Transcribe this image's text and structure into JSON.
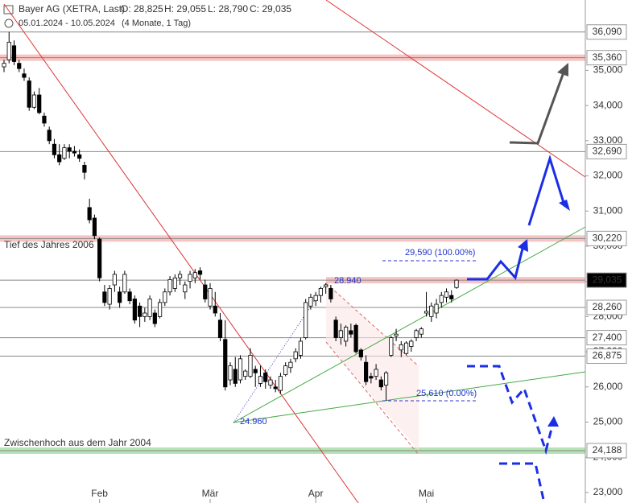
{
  "chart_data": {
    "type": "candlestick",
    "title": "Bayer AG (XETRA, Last)",
    "ohlc_header": [
      "O: 28,825",
      "H: 29,055",
      "L: 28,790",
      "C: 29,035"
    ],
    "subtitle": "05.01.2024 - 10.05.2024",
    "period": "(4 Monate, 1 Tag)",
    "up_color": "#ffffff",
    "down_color": "#000000",
    "ylim": [
      22700,
      37000
    ],
    "yticks": [
      {
        "value": 23000,
        "label": "23,000"
      },
      {
        "value": 24000,
        "label": "24,000"
      },
      {
        "value": 25000,
        "label": "25,000"
      },
      {
        "value": 26000,
        "label": "26,000"
      },
      {
        "value": 27000,
        "label": "27,000"
      },
      {
        "value": 28000,
        "label": "28,000"
      },
      {
        "value": 29000,
        "label": "29,000"
      },
      {
        "value": 30000,
        "label": "30,000"
      },
      {
        "value": 31000,
        "label": "31,000"
      },
      {
        "value": 32000,
        "label": "32,000"
      },
      {
        "value": 33000,
        "label": "33,000"
      },
      {
        "value": 34000,
        "label": "34,000"
      },
      {
        "value": 35000,
        "label": "35,000"
      }
    ],
    "month_ticks": [
      {
        "label": "Feb",
        "index": 19
      },
      {
        "label": "Mär",
        "index": 41
      },
      {
        "label": "Apr",
        "index": 62
      },
      {
        "label": "Mai",
        "index": 84
      }
    ],
    "levels": [
      {
        "value": 36090,
        "label": "36,090",
        "kind": "line"
      },
      {
        "value": 35360,
        "label": "35,360",
        "kind": "resistance"
      },
      {
        "value": 32690,
        "label": "32,690",
        "kind": "line"
      },
      {
        "value": 30220,
        "label": "30,220",
        "kind": "resistance"
      },
      {
        "value": 29035,
        "label": "29,035",
        "kind": "last"
      },
      {
        "value": 28260,
        "label": "28,260",
        "kind": "line"
      },
      {
        "value": 27400,
        "label": "27,400",
        "kind": "line"
      },
      {
        "value": 26875,
        "label": "26,875",
        "kind": "line"
      },
      {
        "value": 24188,
        "label": "24,188",
        "kind": "support"
      }
    ],
    "annotations": [
      "Tief des Jahres 2006",
      "Zwischenhoch aus dem Jahr 2004",
      "28.940",
      "24.960",
      "29,590 (100.00%)",
      "25,610 (0.00%)"
    ],
    "candles": [
      [
        35100,
        35300,
        34950,
        35200
      ],
      [
        35300,
        36090,
        35200,
        35800
      ],
      [
        35700,
        35850,
        35150,
        35250
      ],
      [
        35200,
        35300,
        34950,
        35050
      ],
      [
        34900,
        35050,
        34700,
        34800
      ],
      [
        34700,
        34800,
        33850,
        33950
      ],
      [
        33950,
        34400,
        33900,
        34300
      ],
      [
        34300,
        34500,
        33750,
        33800
      ],
      [
        33700,
        33800,
        33400,
        33500
      ],
      [
        33300,
        33400,
        32900,
        33000
      ],
      [
        32900,
        33050,
        32500,
        32600
      ],
      [
        32600,
        32900,
        32300,
        32400
      ],
      [
        32500,
        32900,
        32450,
        32800
      ],
      [
        32800,
        32900,
        32500,
        32700
      ],
      [
        32700,
        32850,
        32550,
        32650
      ],
      [
        32600,
        32750,
        32400,
        32500
      ],
      [
        32300,
        32400,
        31900,
        32100
      ],
      [
        31100,
        31350,
        30650,
        30750
      ],
      [
        30800,
        30900,
        30200,
        30300
      ],
      [
        30200,
        30250,
        29000,
        29100
      ],
      [
        28700,
        28900,
        28300,
        28400
      ],
      [
        28350,
        28900,
        28200,
        28800
      ],
      [
        28900,
        29300,
        28700,
        29200
      ],
      [
        28700,
        28850,
        28250,
        28400
      ],
      [
        28700,
        29300,
        28650,
        29200
      ],
      [
        28700,
        28800,
        28350,
        28450
      ],
      [
        28500,
        28600,
        27800,
        27900
      ],
      [
        28300,
        28400,
        27700,
        28000
      ],
      [
        28000,
        28250,
        27850,
        28100
      ],
      [
        28000,
        28600,
        27900,
        28500
      ],
      [
        28100,
        28200,
        27700,
        27800
      ],
      [
        28000,
        28500,
        27950,
        28400
      ],
      [
        28400,
        28800,
        28300,
        28700
      ],
      [
        28700,
        29150,
        28600,
        29050
      ],
      [
        28800,
        29200,
        28700,
        29100
      ],
      [
        29100,
        29300,
        28900,
        29200
      ],
      [
        28700,
        29000,
        28500,
        28900
      ],
      [
        29000,
        29300,
        28800,
        29200
      ],
      [
        29100,
        29350,
        28950,
        29250
      ],
      [
        29300,
        29400,
        29050,
        29200
      ],
      [
        28900,
        29050,
        28400,
        28500
      ],
      [
        28300,
        28950,
        28200,
        28800
      ],
      [
        28300,
        28700,
        28000,
        28100
      ],
      [
        27900,
        28100,
        27300,
        27400
      ],
      [
        27350,
        27900,
        25900,
        26000
      ],
      [
        26200,
        26700,
        26050,
        26600
      ],
      [
        26500,
        26850,
        26000,
        26100
      ],
      [
        26200,
        26900,
        26100,
        26800
      ],
      [
        26300,
        26500,
        26200,
        26450
      ],
      [
        26300,
        27100,
        26250,
        26900
      ],
      [
        26500,
        26600,
        26000,
        26400
      ],
      [
        26100,
        26600,
        26000,
        26300
      ],
      [
        26400,
        26500,
        25950,
        26150
      ],
      [
        26050,
        26300,
        25950,
        26200
      ],
      [
        26000,
        26200,
        25850,
        25950
      ],
      [
        25900,
        26400,
        25800,
        26300
      ],
      [
        26350,
        26700,
        26300,
        26600
      ],
      [
        26550,
        26800,
        26400,
        26700
      ],
      [
        26800,
        27100,
        26700,
        27000
      ],
      [
        26900,
        27400,
        26800,
        27300
      ],
      [
        27400,
        28500,
        27350,
        28400
      ],
      [
        28300,
        28650,
        28200,
        28550
      ],
      [
        28450,
        28700,
        28300,
        28600
      ],
      [
        28600,
        28850,
        28400,
        28800
      ],
      [
        28850,
        28950,
        28650,
        28900
      ],
      [
        28800,
        28900,
        28400,
        28500
      ],
      [
        27900,
        28000,
        27300,
        27400
      ],
      [
        27400,
        27800,
        27200,
        27600
      ],
      [
        27300,
        27750,
        27150,
        27700
      ],
      [
        27600,
        27800,
        27400,
        27500
      ],
      [
        27750,
        27800,
        26950,
        27000
      ],
      [
        27050,
        27100,
        26750,
        26850
      ],
      [
        26700,
        26900,
        26050,
        26150
      ],
      [
        26300,
        26400,
        26100,
        26250
      ],
      [
        26300,
        26650,
        26200,
        26500
      ],
      [
        26200,
        26300,
        25900,
        26000
      ],
      [
        26050,
        26450,
        25610,
        26400
      ],
      [
        26900,
        27450,
        26850,
        27400
      ],
      [
        27450,
        27650,
        27300,
        27500
      ],
      [
        27050,
        27300,
        26850,
        27200
      ],
      [
        26950,
        27300,
        26900,
        27250
      ],
      [
        27150,
        27350,
        27000,
        27300
      ],
      [
        27400,
        27650,
        27300,
        27600
      ],
      [
        27500,
        27700,
        27400,
        27650
      ],
      [
        28100,
        28700,
        28000,
        28150
      ],
      [
        28000,
        28400,
        27850,
        28300
      ],
      [
        28100,
        28500,
        27950,
        28350
      ],
      [
        28400,
        28700,
        28250,
        28600
      ],
      [
        28550,
        28800,
        28400,
        28700
      ],
      [
        28600,
        28750,
        28400,
        28500
      ],
      [
        28825,
        29055,
        28790,
        29035
      ]
    ]
  }
}
